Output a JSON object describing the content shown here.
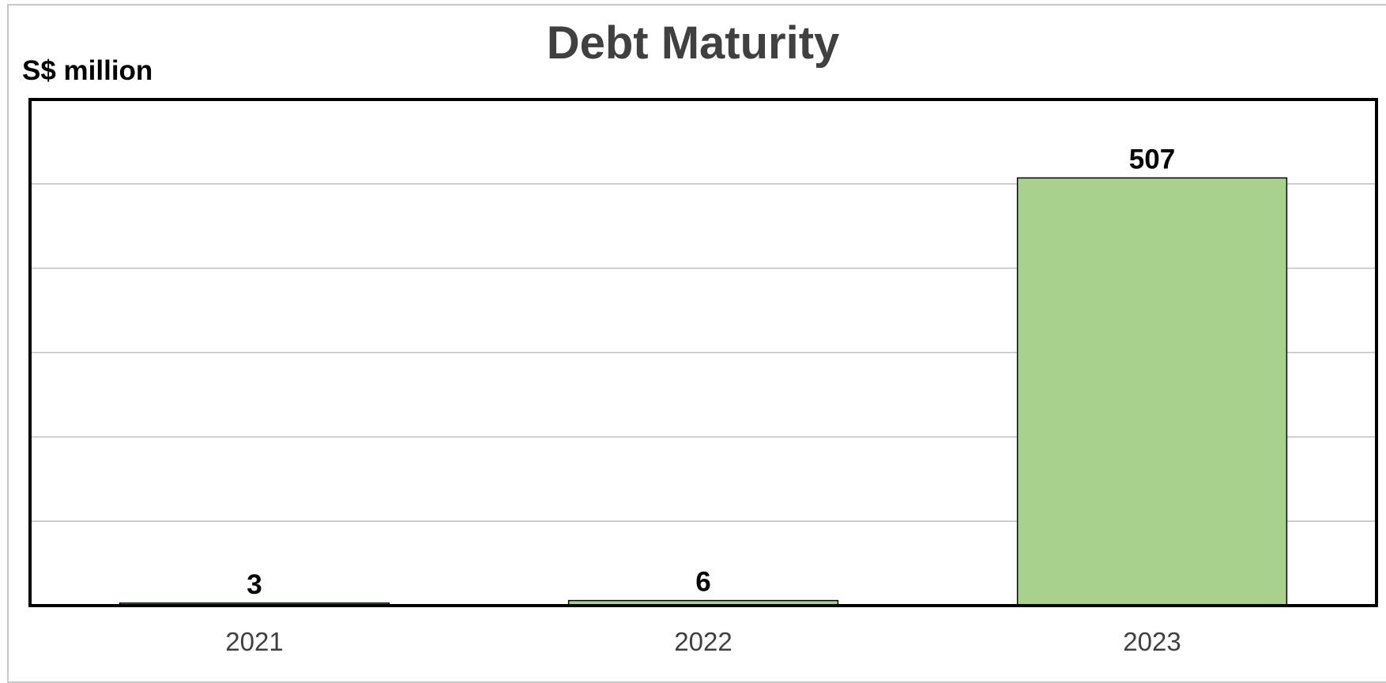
{
  "chart_data": {
    "type": "bar",
    "title": "Debt Maturity",
    "ylabel": "S$ million",
    "xlabel": "",
    "categories": [
      "2021",
      "2022",
      "2023"
    ],
    "values": [
      3,
      6,
      507
    ],
    "data_labels": [
      "3",
      "6",
      "507"
    ],
    "ylim": [
      0,
      600
    ],
    "grid": true,
    "legend": "none",
    "colors": {
      "bar": "#a9d18e",
      "bar_edge": "#000000",
      "grid": "#bfbfbf",
      "title": "#404040"
    }
  }
}
